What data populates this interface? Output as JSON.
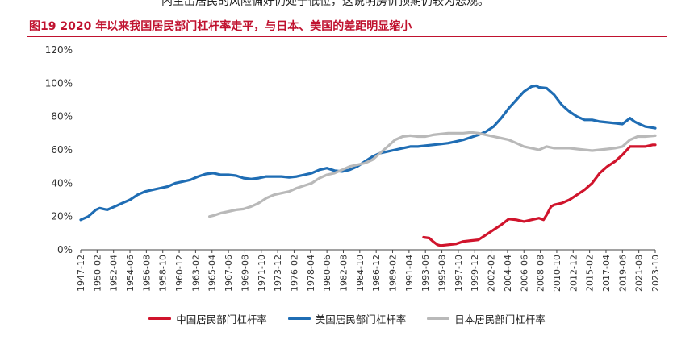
{
  "page": {
    "top_fragment": "内生出居民的风险偏好仍处于低位，这说明房价预期仍较为悲观。",
    "title": "图19  2020 年以来我国居民部门杠杆率走平，与日本、美国的差距明显缩小"
  },
  "colors": {
    "china": "#d0142c",
    "usa": "#1f6db4",
    "japan": "#b9b9b9"
  },
  "chart_data": {
    "type": "line",
    "title": "图19  2020 年以来我国居民部门杠杆率走平，与日本、美国的差距明显缩小",
    "xlabel": "",
    "ylabel": "",
    "ylim": [
      0,
      120
    ],
    "yticks": [
      0,
      20,
      40,
      60,
      80,
      100,
      120
    ],
    "ytick_labels": [
      "0%",
      "20%",
      "40%",
      "60%",
      "80%",
      "100%",
      "120%"
    ],
    "xlim": [
      "1947-12",
      "2023-10"
    ],
    "xtick_labels": [
      "1947-12",
      "1950-02",
      "1952-04",
      "1954-06",
      "1956-08",
      "1958-10",
      "1960-12",
      "1963-02",
      "1965-04",
      "1967-06",
      "1969-08",
      "1971-10",
      "1973-12",
      "1976-02",
      "1978-04",
      "1980-06",
      "1982-08",
      "1984-10",
      "1986-12",
      "1989-02",
      "1991-04",
      "1993-06",
      "1995-08",
      "1997-10",
      "1999-12",
      "2002-02",
      "2004-04",
      "2006-06",
      "2008-08",
      "2010-10",
      "2012-12",
      "2015-02",
      "2017-04",
      "2019-06",
      "2021-08",
      "2023-10"
    ],
    "grid": false,
    "legend": "bottom",
    "series": [
      {
        "name": "中国居民部门杠杆率",
        "color": "#d0142c",
        "points": [
          [
            "1993-03",
            7.5
          ],
          [
            "1993-12",
            7
          ],
          [
            "1994-06",
            5
          ],
          [
            "1995-01",
            3
          ],
          [
            "1995-06",
            2.5
          ],
          [
            "1996-06",
            3
          ],
          [
            "1997-06",
            3.5
          ],
          [
            "1998-06",
            5
          ],
          [
            "1999-06",
            5.5
          ],
          [
            "2000-06",
            6
          ],
          [
            "2001-06",
            9
          ],
          [
            "2002-06",
            12
          ],
          [
            "2003-06",
            15
          ],
          [
            "2004-06",
            18.5
          ],
          [
            "2005-06",
            18
          ],
          [
            "2006-06",
            17
          ],
          [
            "2007-06",
            18
          ],
          [
            "2008-06",
            19
          ],
          [
            "2009-01",
            18
          ],
          [
            "2009-06",
            21
          ],
          [
            "2010-01",
            26
          ],
          [
            "2010-06",
            27
          ],
          [
            "2011-06",
            28
          ],
          [
            "2012-06",
            30
          ],
          [
            "2013-06",
            33
          ],
          [
            "2014-06",
            36
          ],
          [
            "2015-06",
            40
          ],
          [
            "2016-06",
            46
          ],
          [
            "2017-06",
            50
          ],
          [
            "2018-06",
            53
          ],
          [
            "2019-06",
            57
          ],
          [
            "2020-06",
            62
          ],
          [
            "2021-06",
            62
          ],
          [
            "2022-06",
            62
          ],
          [
            "2023-06",
            63
          ],
          [
            "2023-10",
            63
          ]
        ]
      },
      {
        "name": "美国居民部门杠杆率",
        "color": "#1f6db4",
        "points": [
          [
            "1947-12",
            18
          ],
          [
            "1948-12",
            20
          ],
          [
            "1949-12",
            24
          ],
          [
            "1950-06",
            25
          ],
          [
            "1951-06",
            24
          ],
          [
            "1952-06",
            26
          ],
          [
            "1953-06",
            28
          ],
          [
            "1954-06",
            30
          ],
          [
            "1955-06",
            33
          ],
          [
            "1956-06",
            35
          ],
          [
            "1957-06",
            36
          ],
          [
            "1958-06",
            37
          ],
          [
            "1959-06",
            38
          ],
          [
            "1960-06",
            40
          ],
          [
            "1961-06",
            41
          ],
          [
            "1962-06",
            42
          ],
          [
            "1963-06",
            44
          ],
          [
            "1964-06",
            45.5
          ],
          [
            "1965-06",
            46
          ],
          [
            "1966-06",
            45
          ],
          [
            "1967-06",
            45
          ],
          [
            "1968-06",
            44.5
          ],
          [
            "1969-06",
            43
          ],
          [
            "1970-06",
            42.5
          ],
          [
            "1971-06",
            43
          ],
          [
            "1972-06",
            44
          ],
          [
            "1973-06",
            44
          ],
          [
            "1974-06",
            44
          ],
          [
            "1975-06",
            43.5
          ],
          [
            "1976-06",
            44
          ],
          [
            "1977-06",
            45
          ],
          [
            "1978-06",
            46
          ],
          [
            "1979-06",
            48
          ],
          [
            "1980-06",
            49
          ],
          [
            "1981-06",
            47.5
          ],
          [
            "1982-06",
            47
          ],
          [
            "1983-06",
            48
          ],
          [
            "1984-06",
            50
          ],
          [
            "1985-06",
            53
          ],
          [
            "1986-06",
            56
          ],
          [
            "1987-06",
            58
          ],
          [
            "1988-06",
            59
          ],
          [
            "1989-06",
            60
          ],
          [
            "1990-06",
            61
          ],
          [
            "1991-06",
            62
          ],
          [
            "1992-06",
            62
          ],
          [
            "1993-06",
            62.5
          ],
          [
            "1994-06",
            63
          ],
          [
            "1995-06",
            63.5
          ],
          [
            "1996-06",
            64
          ],
          [
            "1997-06",
            65
          ],
          [
            "1998-06",
            66
          ],
          [
            "1999-06",
            67.5
          ],
          [
            "2000-06",
            69
          ],
          [
            "2001-06",
            71
          ],
          [
            "2002-06",
            74
          ],
          [
            "2003-06",
            79
          ],
          [
            "2004-06",
            85
          ],
          [
            "2005-06",
            90
          ],
          [
            "2006-06",
            95
          ],
          [
            "2007-06",
            98
          ],
          [
            "2008-01",
            98.5
          ],
          [
            "2008-06",
            97.5
          ],
          [
            "2009-06",
            97
          ],
          [
            "2010-06",
            93
          ],
          [
            "2011-06",
            87
          ],
          [
            "2012-06",
            83
          ],
          [
            "2013-06",
            80
          ],
          [
            "2014-06",
            78
          ],
          [
            "2015-06",
            78
          ],
          [
            "2016-06",
            77
          ],
          [
            "2017-06",
            76.5
          ],
          [
            "2018-06",
            76
          ],
          [
            "2019-06",
            75.5
          ],
          [
            "2020-06",
            79
          ],
          [
            "2021-01",
            77
          ],
          [
            "2021-06",
            76
          ],
          [
            "2022-06",
            74
          ],
          [
            "2023-10",
            73
          ]
        ]
      },
      {
        "name": "日本居民部门杠杆率",
        "color": "#b9b9b9",
        "points": [
          [
            "1964-12",
            20
          ],
          [
            "1965-06",
            20.5
          ],
          [
            "1966-06",
            22
          ],
          [
            "1967-06",
            23
          ],
          [
            "1968-06",
            24
          ],
          [
            "1969-06",
            24.5
          ],
          [
            "1970-06",
            26
          ],
          [
            "1971-06",
            28
          ],
          [
            "1972-06",
            31
          ],
          [
            "1973-06",
            33
          ],
          [
            "1974-06",
            34
          ],
          [
            "1975-06",
            35
          ],
          [
            "1976-06",
            37
          ],
          [
            "1977-06",
            38.5
          ],
          [
            "1978-06",
            40
          ],
          [
            "1979-06",
            43
          ],
          [
            "1980-06",
            45
          ],
          [
            "1981-06",
            46
          ],
          [
            "1982-06",
            48
          ],
          [
            "1983-06",
            50
          ],
          [
            "1984-06",
            51
          ],
          [
            "1985-06",
            52
          ],
          [
            "1986-06",
            54
          ],
          [
            "1987-06",
            58
          ],
          [
            "1988-06",
            62
          ],
          [
            "1989-06",
            66
          ],
          [
            "1990-06",
            68
          ],
          [
            "1991-06",
            68.5
          ],
          [
            "1992-06",
            68
          ],
          [
            "1993-06",
            68
          ],
          [
            "1994-06",
            69
          ],
          [
            "1995-06",
            69.5
          ],
          [
            "1996-06",
            70
          ],
          [
            "1997-06",
            70
          ],
          [
            "1998-06",
            70
          ],
          [
            "1999-06",
            70.5
          ],
          [
            "2000-06",
            70
          ],
          [
            "2001-06",
            69
          ],
          [
            "2002-06",
            68
          ],
          [
            "2003-06",
            67
          ],
          [
            "2004-06",
            66
          ],
          [
            "2005-06",
            64
          ],
          [
            "2006-06",
            62
          ],
          [
            "2007-06",
            61
          ],
          [
            "2008-06",
            60
          ],
          [
            "2009-06",
            62
          ],
          [
            "2010-06",
            61
          ],
          [
            "2011-06",
            61
          ],
          [
            "2012-06",
            61
          ],
          [
            "2013-06",
            60.5
          ],
          [
            "2014-06",
            60
          ],
          [
            "2015-06",
            59.5
          ],
          [
            "2016-06",
            60
          ],
          [
            "2017-06",
            60.5
          ],
          [
            "2018-06",
            61
          ],
          [
            "2019-06",
            62
          ],
          [
            "2020-06",
            66
          ],
          [
            "2021-06",
            68
          ],
          [
            "2022-06",
            68
          ],
          [
            "2023-10",
            68.5
          ]
        ]
      }
    ]
  }
}
